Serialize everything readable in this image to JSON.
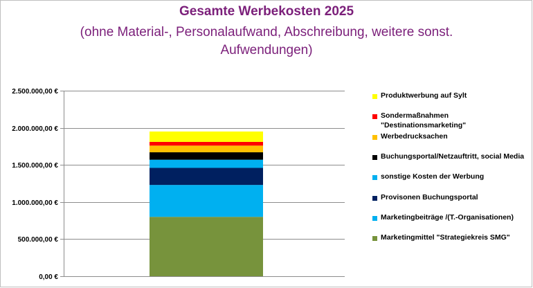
{
  "chart_data": {
    "type": "bar",
    "stacked": true,
    "title": "Gesamte Werbekosten 2025",
    "subtitle": "(ohne Material-, Personalaufwand, Abschreibung, weitere sonst. Aufwendungen)",
    "xlabel": "",
    "ylabel": "",
    "ylim": [
      0,
      2500000
    ],
    "y_ticks": [
      "0,00 €",
      "500.000,00 €",
      "1.000.000,00 €",
      "1.500.000,00 €",
      "2.000.000,00 €",
      "2.500.000,00 €"
    ],
    "y_tick_values": [
      0,
      500000,
      1000000,
      1500000,
      2000000,
      2500000
    ],
    "grid": true,
    "legend_position": "right",
    "series": [
      {
        "name": "Marketingmittel \"Strategiekreis SMG\"",
        "value": 800000,
        "color": "#77933c"
      },
      {
        "name": "Marketingbeiträge /(T.-Organisationen)",
        "value": 430000,
        "color": "#00b0f0"
      },
      {
        "name": "Provisonen Buchungsportal",
        "value": 230000,
        "color": "#002060"
      },
      {
        "name": "sonstige Kosten der Werbung",
        "value": 110000,
        "color": "#00b0f0"
      },
      {
        "name": "Buchungsportal/Netzauftritt, social Media",
        "value": 100000,
        "color": "#000000"
      },
      {
        "name": "Werbedrucksachen",
        "value": 90000,
        "color": "#ffc000"
      },
      {
        "name": "Sondermaßnahmen\n\"Destinationsmarketing\"",
        "value": 50000,
        "color": "#ff0000"
      },
      {
        "name": "Produktwerbung auf Sylt",
        "value": 140000,
        "color": "#ffff00"
      }
    ]
  }
}
